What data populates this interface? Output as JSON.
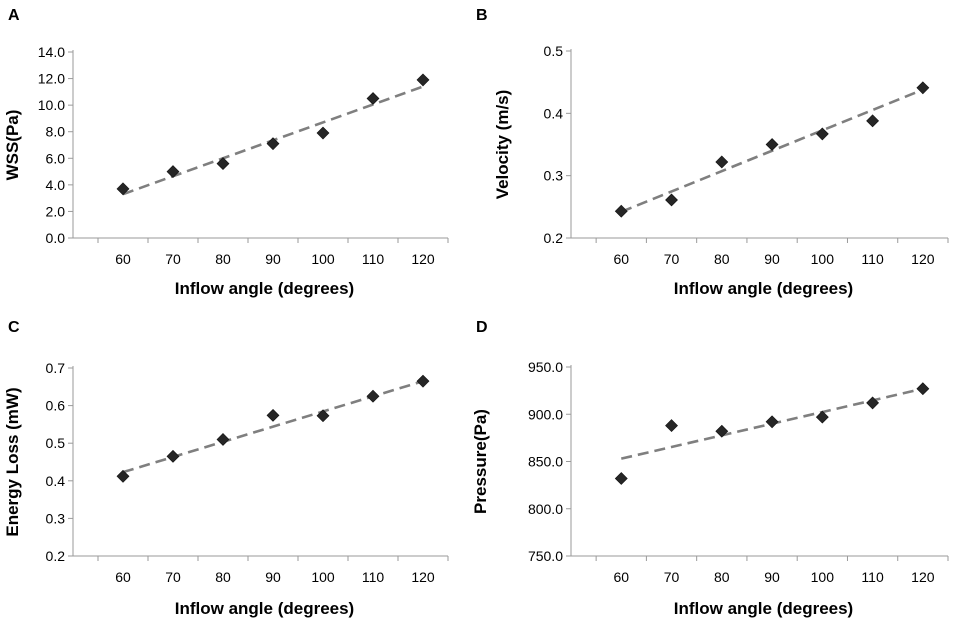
{
  "chart_data": [
    {
      "panel": "A",
      "type": "scatter",
      "xlabel": "Inflow angle (degrees)",
      "ylabel": "WSS(Pa)",
      "x": [
        60,
        70,
        80,
        90,
        100,
        110,
        120
      ],
      "y": [
        3.7,
        5.0,
        5.6,
        7.1,
        7.9,
        10.5,
        11.9
      ],
      "ylim": [
        0.0,
        14.0
      ],
      "yticks": [
        "0.0",
        "2.0",
        "4.0",
        "6.0",
        "8.0",
        "10.0",
        "12.0",
        "14.0"
      ],
      "xlim": [
        50,
        125
      ],
      "xticks": [
        "60",
        "70",
        "80",
        "90",
        "100",
        "110",
        "120"
      ],
      "trendline": {
        "x": [
          60,
          120
        ],
        "y": [
          3.3,
          11.4
        ]
      }
    },
    {
      "panel": "B",
      "type": "scatter",
      "xlabel": "Inflow angle (degrees)",
      "ylabel": "Velocity (m/s)",
      "x": [
        60,
        70,
        80,
        90,
        100,
        110,
        120
      ],
      "y": [
        0.243,
        0.261,
        0.322,
        0.35,
        0.367,
        0.388,
        0.441
      ],
      "ylim": [
        0.2,
        0.5
      ],
      "yticks": [
        "0.2",
        "0.3",
        "0.4",
        "0.5"
      ],
      "xlim": [
        50,
        125
      ],
      "xticks": [
        "60",
        "70",
        "80",
        "90",
        "100",
        "110",
        "120"
      ],
      "trendline": {
        "x": [
          60,
          120
        ],
        "y": [
          0.242,
          0.438
        ]
      }
    },
    {
      "panel": "C",
      "type": "scatter",
      "xlabel": "Inflow angle (degrees)",
      "ylabel": "Energy Loss (mW)",
      "x": [
        60,
        70,
        80,
        90,
        100,
        110,
        120
      ],
      "y": [
        0.412,
        0.465,
        0.51,
        0.574,
        0.573,
        0.625,
        0.665
      ],
      "ylim": [
        0.2,
        0.7
      ],
      "yticks": [
        "0.2",
        "0.3",
        "0.4",
        "0.5",
        "0.6",
        "0.7"
      ],
      "xlim": [
        50,
        125
      ],
      "xticks": [
        "60",
        "70",
        "80",
        "90",
        "100",
        "110",
        "120"
      ],
      "trendline": {
        "x": [
          60,
          120
        ],
        "y": [
          0.423,
          0.665
        ]
      }
    },
    {
      "panel": "D",
      "type": "scatter",
      "xlabel": "Inflow angle (degrees)",
      "ylabel": "Pressure(Pa)",
      "x": [
        60,
        70,
        80,
        90,
        100,
        110,
        120
      ],
      "y": [
        832,
        888,
        882,
        892,
        897,
        912,
        927
      ],
      "ylim": [
        750.0,
        950.0
      ],
      "yticks": [
        "750.0",
        "800.0",
        "850.0",
        "900.0",
        "950.0"
      ],
      "xlim": [
        50,
        125
      ],
      "xticks": [
        "60",
        "70",
        "80",
        "90",
        "100",
        "110",
        "120"
      ],
      "trendline": {
        "x": [
          60,
          120
        ],
        "y": [
          853,
          927
        ]
      }
    }
  ]
}
